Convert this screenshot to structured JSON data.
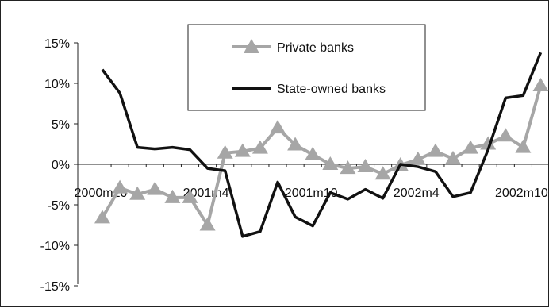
{
  "chart_data": {
    "type": "line",
    "title": "",
    "xlabel": "",
    "ylabel": "",
    "ylim": [
      -0.15,
      0.15
    ],
    "y_ticks": [
      0.15,
      0.1,
      0.05,
      0.0,
      -0.05,
      -0.1,
      -0.15
    ],
    "y_tick_labels": [
      "15%",
      "10%",
      "5%",
      "0%",
      "-5%",
      "-10%",
      "-15%"
    ],
    "x_tick_labels": [
      {
        "label": "2000m10",
        "index": 0
      },
      {
        "label": "2001m4",
        "index": 6
      },
      {
        "label": "2001m10",
        "index": 12
      },
      {
        "label": "2002m4",
        "index": 18
      },
      {
        "label": "2002m10",
        "index": 24
      }
    ],
    "grid": false,
    "legend_position": "top-center",
    "series": [
      {
        "name": "Private banks",
        "color": "#a6a6a6",
        "marker": "triangle",
        "values": [
          -0.066,
          -0.029,
          -0.037,
          -0.031,
          -0.041,
          -0.041,
          -0.075,
          0.014,
          0.016,
          0.02,
          0.045,
          0.024,
          0.012,
          0.0,
          -0.005,
          -0.003,
          -0.012,
          -0.001,
          0.006,
          0.016,
          0.007,
          0.02,
          0.025,
          0.035,
          0.021,
          0.097
        ]
      },
      {
        "name": "State-owned banks",
        "color": "#111111",
        "marker": "none",
        "values": [
          0.117,
          0.088,
          0.021,
          0.019,
          0.021,
          0.018,
          -0.005,
          -0.008,
          -0.089,
          -0.083,
          -0.022,
          -0.065,
          -0.076,
          -0.035,
          -0.043,
          -0.031,
          -0.042,
          0.0,
          -0.003,
          -0.009,
          -0.04,
          -0.035,
          0.018,
          0.082,
          0.085,
          0.138
        ]
      }
    ]
  }
}
